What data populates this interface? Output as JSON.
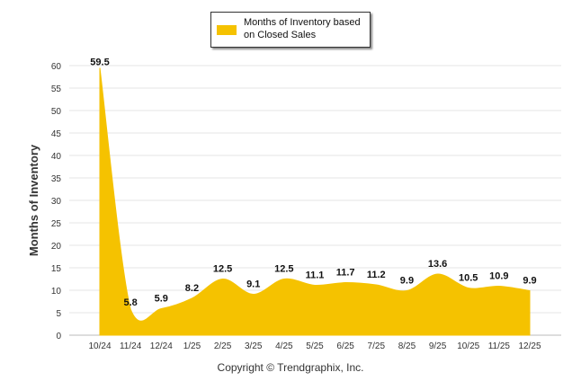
{
  "chart_data": {
    "type": "area",
    "title": "",
    "legend": "Months of Inventory based on Closed Sales",
    "legend_position": "top-center",
    "xlabel": "",
    "ylabel": "Months of Inventory",
    "ylim": [
      0,
      60
    ],
    "yticks": [
      0,
      5,
      10,
      15,
      20,
      25,
      30,
      35,
      40,
      45,
      50,
      55,
      60
    ],
    "categories": [
      "10/24",
      "11/24",
      "12/24",
      "1/25",
      "2/25",
      "3/25",
      "4/25",
      "5/25",
      "6/25",
      "7/25",
      "8/25",
      "9/25",
      "10/25",
      "11/25",
      "12/25"
    ],
    "values": [
      59.5,
      5.8,
      5.9,
      8.2,
      12.5,
      9.1,
      12.5,
      11.1,
      11.7,
      11.2,
      9.9,
      13.6,
      10.5,
      10.9,
      9.9
    ],
    "color": "#f5c200",
    "grid": true
  },
  "footer": {
    "copyright": "Copyright © Trendgraphix, Inc."
  }
}
